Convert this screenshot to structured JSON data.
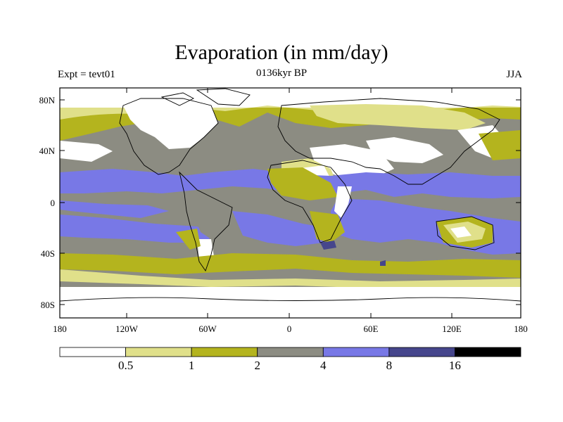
{
  "title": "Evaporation (in mm/day)",
  "left_subtitle": "Expt = tevt01",
  "center_subtitle": "0136kyr BP",
  "right_subtitle": "JJA",
  "lat_labels": [
    "80N",
    "40N",
    "0",
    "40S",
    "80S"
  ],
  "lon_labels": [
    "180",
    "120W",
    "60W",
    "0",
    "60E",
    "120E",
    "180"
  ],
  "colorbar": {
    "colors": [
      "#ffffff",
      "#e0e08a",
      "#b4b41e",
      "#8c8c82",
      "#7878e6",
      "#46468c",
      "#000000"
    ],
    "labels": [
      "0.5",
      "1",
      "2",
      "4",
      "8",
      "16"
    ]
  },
  "chart_data": {
    "type": "filled-contour-map",
    "variable": "Evaporation",
    "units": "mm/day",
    "season": "JJA",
    "experiment": "tevt01",
    "period": "0136kyr BP",
    "levels": [
      0.5,
      1,
      2,
      4,
      8,
      16
    ],
    "lon_range": [
      -180,
      180
    ],
    "lat_range": [
      -90,
      90
    ]
  }
}
